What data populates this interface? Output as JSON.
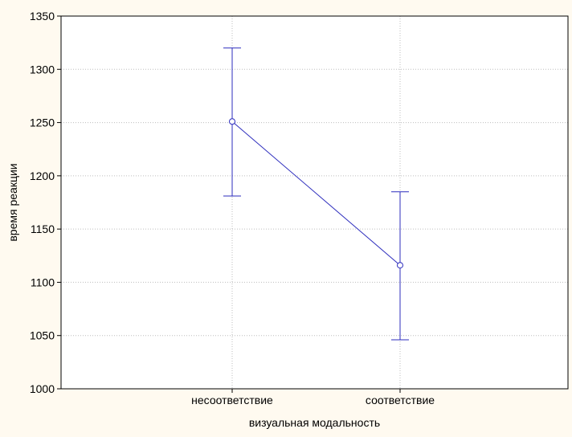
{
  "chart_data": {
    "type": "line",
    "xlabel": "визуальная модальность",
    "ylabel": "время реакции",
    "categories": [
      "несоответствие",
      "соответствие"
    ],
    "series": [
      {
        "values": [
          1251,
          1116
        ],
        "error_low": [
          1181,
          1046
        ],
        "error_high": [
          1320,
          1185
        ]
      }
    ],
    "ylim": [
      1000,
      1350
    ],
    "yticks": [
      "1000",
      "1050",
      "1100",
      "1150",
      "1200",
      "1250",
      "1300",
      "1350"
    ],
    "grid": true,
    "colors": {
      "series": "#2d2dbd",
      "grid": "#bdbdbd",
      "axis": "#000000",
      "background": "#fffaf0",
      "plot_background": "#ffffff"
    }
  }
}
